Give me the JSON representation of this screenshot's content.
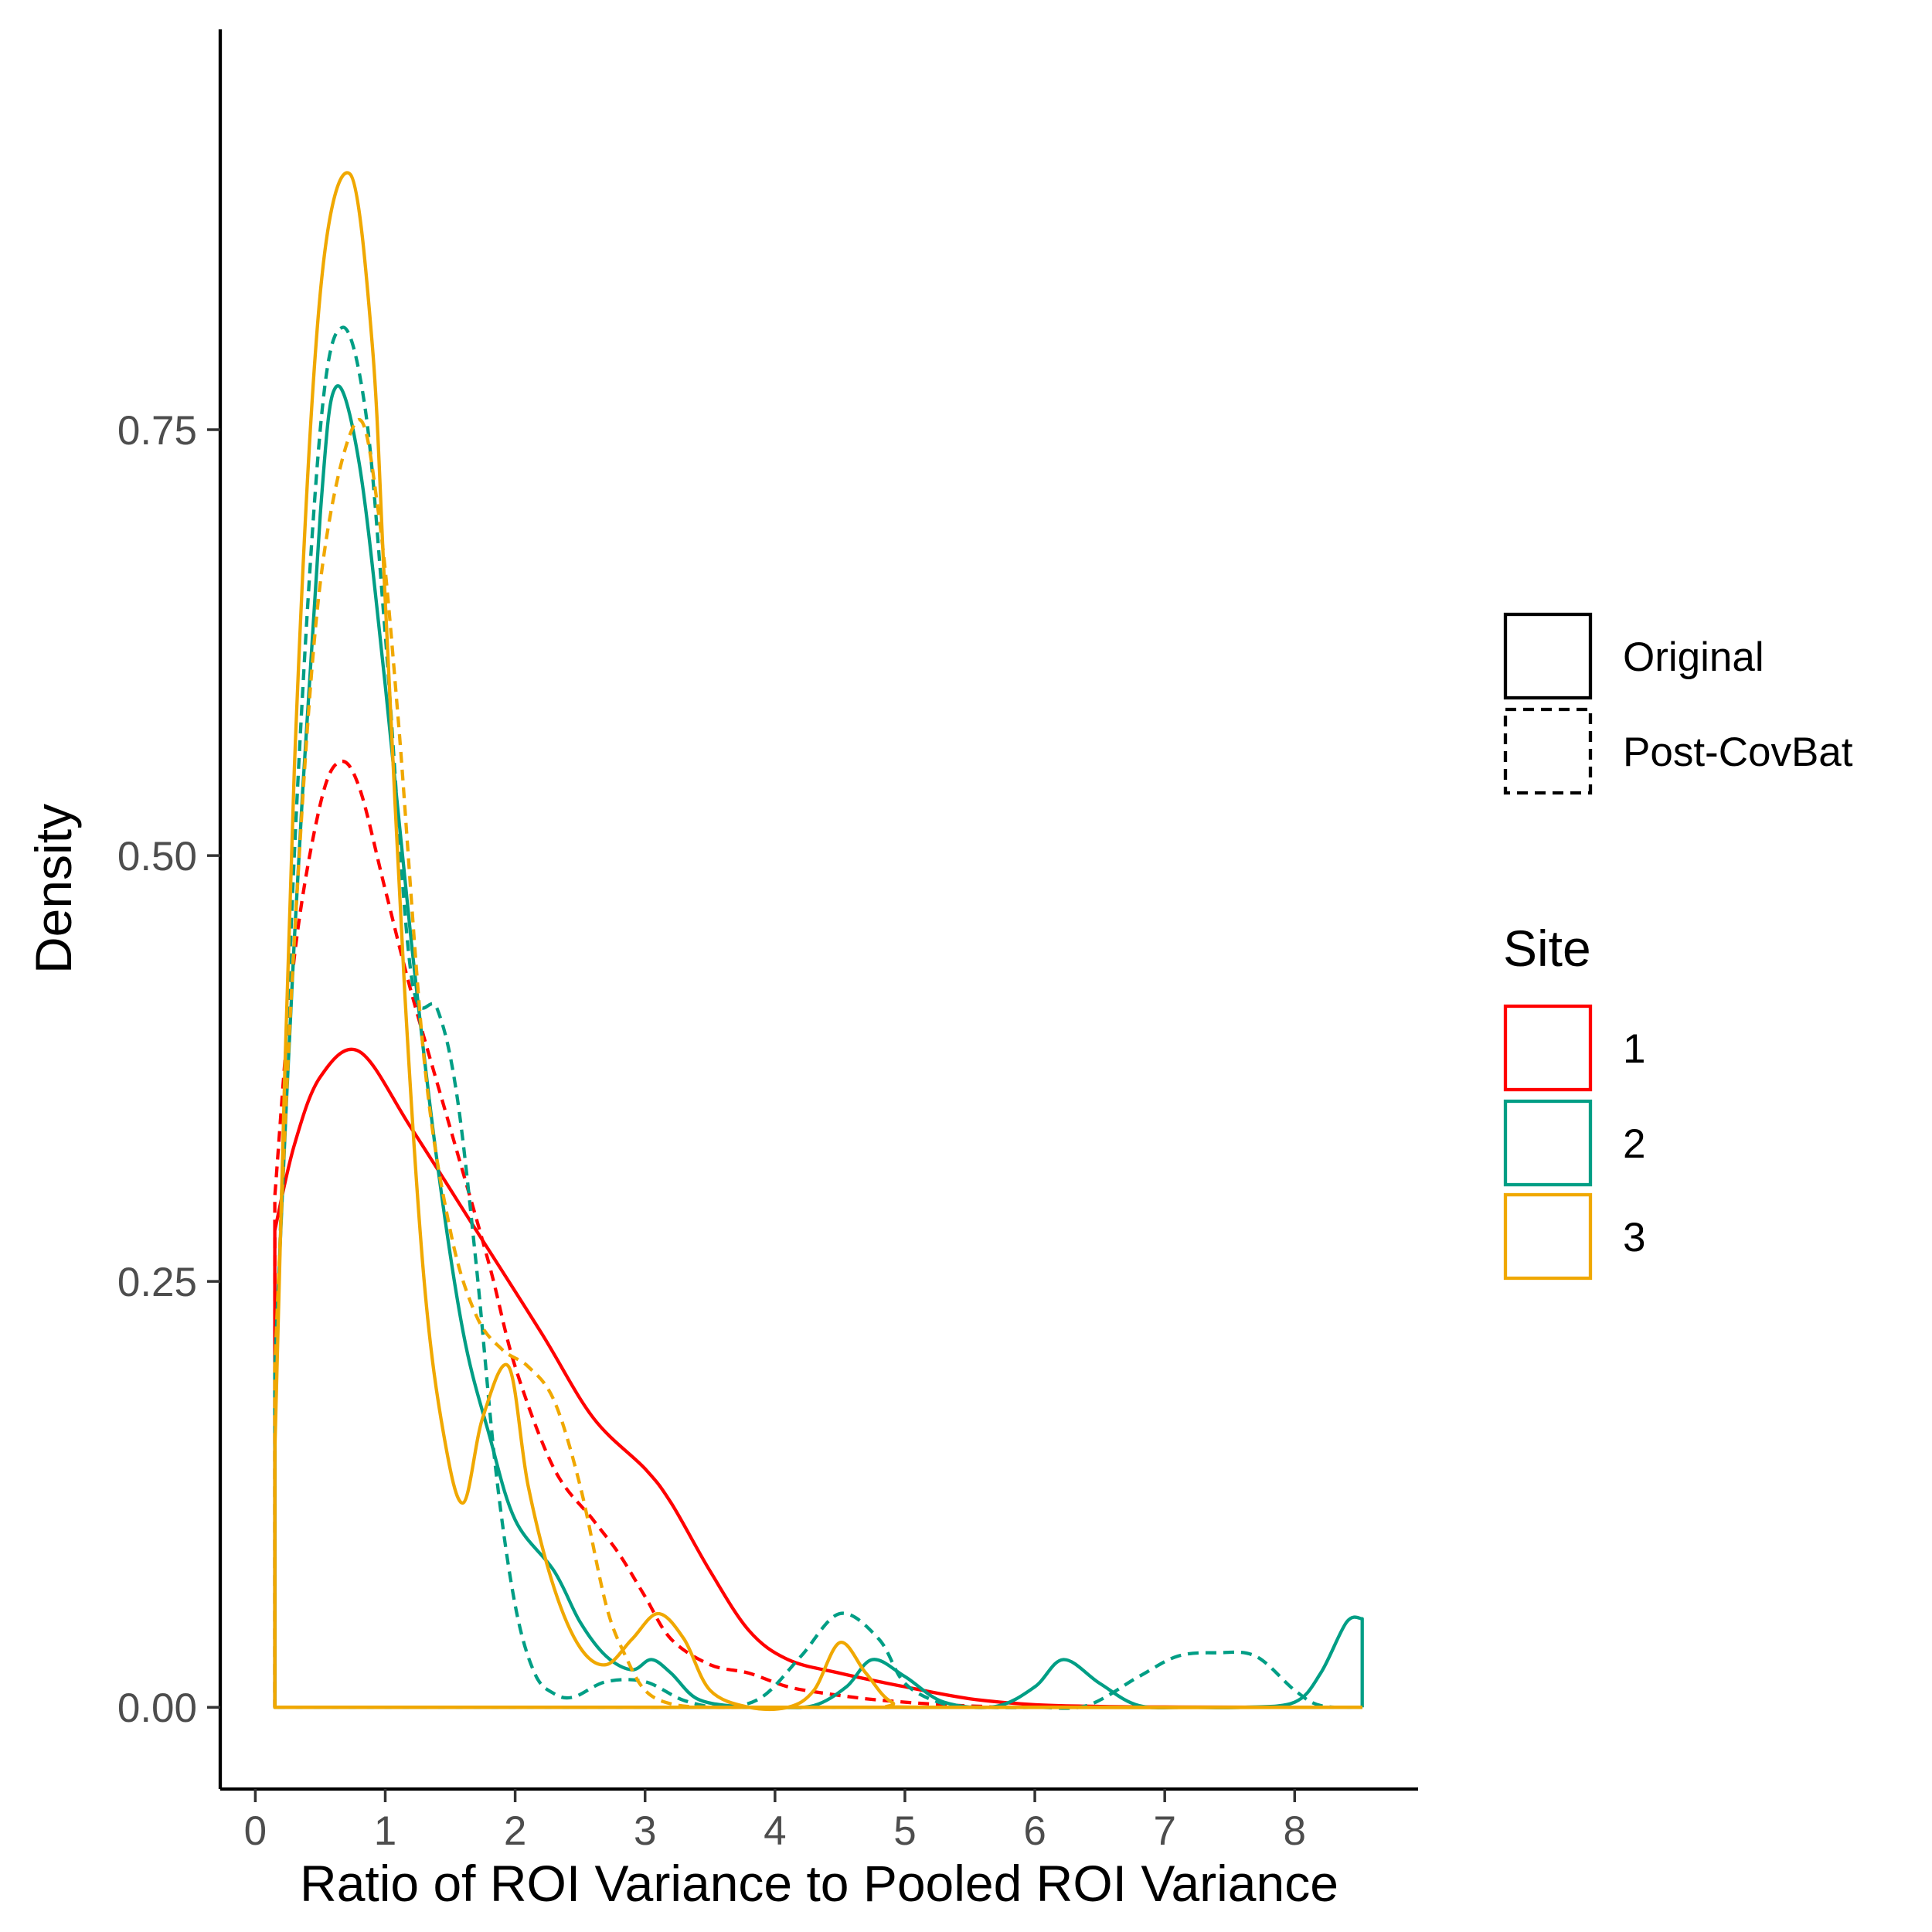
{
  "chart_data": {
    "type": "line",
    "subtype": "density",
    "title": "",
    "xlabel": "Ratio of ROI Variance to Pooled ROI Variance",
    "ylabel": "Density",
    "xlim": [
      -0.27,
      8.95
    ],
    "ylim": [
      -0.048,
      0.985
    ],
    "x_ticks": [
      0,
      1,
      2,
      3,
      4,
      5,
      6,
      7,
      8
    ],
    "y_ticks": [
      0.0,
      0.25,
      0.5,
      0.75
    ],
    "y_tick_labels": [
      "0.00",
      "0.25",
      "0.50",
      "0.75"
    ],
    "grid": false,
    "legend_position": "right",
    "linetype_legend": {
      "entries": [
        {
          "label": "Original",
          "dash": "solid"
        },
        {
          "label": "Post-CovBat",
          "dash": "dashed"
        }
      ]
    },
    "color_legend": {
      "title": "Site",
      "entries": [
        {
          "label": "1",
          "color": "#FF0000"
        },
        {
          "label": "2",
          "color": "#009E85"
        },
        {
          "label": "3",
          "color": "#F0A800"
        }
      ]
    },
    "series": [
      {
        "site": "1",
        "linetype": "Original",
        "color": "#FF0000",
        "dash": "solid",
        "x": [
          0.15,
          0.3,
          0.5,
          0.8,
          1.2,
          1.7,
          2.2,
          2.6,
          3.0,
          3.2,
          3.5,
          3.8,
          4.1,
          4.5,
          5.0,
          5.5,
          6.0,
          6.5,
          7.0,
          8.0,
          8.52
        ],
        "y": [
          0.28,
          0.33,
          0.37,
          0.385,
          0.34,
          0.28,
          0.22,
          0.17,
          0.14,
          0.12,
          0.08,
          0.045,
          0.028,
          0.02,
          0.012,
          0.005,
          0.0015,
          0.0005,
          0.0002,
          0.0,
          0.0
        ]
      },
      {
        "site": "1",
        "linetype": "Post-CovBat",
        "color": "#FF0000",
        "dash": "dashed",
        "x": [
          0.15,
          0.3,
          0.5,
          0.65,
          0.8,
          1.0,
          1.2,
          1.5,
          1.8,
          2.0,
          2.3,
          2.6,
          2.8,
          3.0,
          3.2,
          3.5,
          3.8,
          4.1,
          4.4,
          4.7,
          5.0,
          5.3,
          5.6,
          6.0,
          8.52
        ],
        "y": [
          0.3,
          0.44,
          0.53,
          0.555,
          0.54,
          0.48,
          0.42,
          0.34,
          0.26,
          0.2,
          0.14,
          0.11,
          0.09,
          0.065,
          0.04,
          0.025,
          0.02,
          0.012,
          0.008,
          0.005,
          0.003,
          0.0015,
          0.0005,
          0.0,
          0.0
        ]
      },
      {
        "site": "2",
        "linetype": "Original",
        "color": "#009E85",
        "dash": "solid",
        "x": [
          0.15,
          0.3,
          0.5,
          0.62,
          0.8,
          1.0,
          1.2,
          1.4,
          1.6,
          1.8,
          2.0,
          2.3,
          2.5,
          2.7,
          2.9,
          3.05,
          3.2,
          3.4,
          3.7,
          4.0,
          4.3,
          4.55,
          4.75,
          5.0,
          5.3,
          5.7,
          6.0,
          6.22,
          6.5,
          6.8,
          7.2,
          7.6,
          8.0,
          8.2,
          8.4,
          8.52
        ],
        "y": [
          0.2,
          0.45,
          0.7,
          0.775,
          0.73,
          0.6,
          0.45,
          0.32,
          0.22,
          0.16,
          0.11,
          0.08,
          0.05,
          0.03,
          0.022,
          0.028,
          0.02,
          0.005,
          0.0005,
          0.0,
          0.001,
          0.012,
          0.028,
          0.018,
          0.003,
          0.0005,
          0.012,
          0.028,
          0.014,
          0.001,
          0.0,
          0.0,
          0.003,
          0.02,
          0.05,
          0.052
        ]
      },
      {
        "site": "2",
        "linetype": "Post-CovBat",
        "color": "#009E85",
        "dash": "dashed",
        "x": [
          0.15,
          0.3,
          0.5,
          0.67,
          0.85,
          1.0,
          1.2,
          1.4,
          1.55,
          1.7,
          1.85,
          2.0,
          2.15,
          2.3,
          2.45,
          2.7,
          3.0,
          3.3,
          3.6,
          3.9,
          4.2,
          4.5,
          4.8,
          5.0,
          5.3,
          5.6,
          6.0,
          6.4,
          6.8,
          7.1,
          7.4,
          7.7,
          8.0,
          8.2,
          8.52
        ],
        "y": [
          0.18,
          0.5,
          0.75,
          0.81,
          0.76,
          0.63,
          0.43,
          0.41,
          0.36,
          0.26,
          0.14,
          0.06,
          0.02,
          0.008,
          0.006,
          0.015,
          0.015,
          0.004,
          0.0,
          0.006,
          0.03,
          0.055,
          0.04,
          0.014,
          0.002,
          0.0,
          0.0,
          0.001,
          0.018,
          0.03,
          0.032,
          0.03,
          0.01,
          0.001,
          0.0
        ]
      },
      {
        "site": "3",
        "linetype": "Original",
        "color": "#F0A800",
        "dash": "solid",
        "x": [
          0.15,
          0.3,
          0.5,
          0.73,
          0.9,
          1.0,
          1.15,
          1.3,
          1.45,
          1.6,
          1.75,
          1.95,
          2.1,
          2.3,
          2.5,
          2.7,
          2.9,
          3.1,
          3.3,
          3.5,
          3.8,
          4.1,
          4.3,
          4.5,
          4.7,
          4.9,
          5.2,
          8.52
        ],
        "y": [
          0.15,
          0.55,
          0.83,
          0.9,
          0.8,
          0.65,
          0.42,
          0.25,
          0.16,
          0.12,
          0.17,
          0.2,
          0.13,
          0.07,
          0.035,
          0.025,
          0.04,
          0.055,
          0.04,
          0.01,
          0.0,
          0.0,
          0.01,
          0.038,
          0.02,
          0.003,
          0.0,
          0.0
        ]
      },
      {
        "site": "3",
        "linetype": "Post-CovBat",
        "color": "#F0A800",
        "dash": "dashed",
        "x": [
          0.15,
          0.3,
          0.5,
          0.78,
          0.95,
          1.1,
          1.3,
          1.5,
          1.7,
          1.9,
          2.1,
          2.3,
          2.5,
          2.7,
          2.85,
          3.0,
          3.2,
          3.5,
          4.0,
          5.0,
          8.52
        ],
        "y": [
          0.2,
          0.45,
          0.66,
          0.755,
          0.7,
          0.58,
          0.38,
          0.28,
          0.23,
          0.21,
          0.2,
          0.18,
          0.13,
          0.06,
          0.03,
          0.01,
          0.002,
          0.0,
          0.0,
          0.0,
          0.0
        ]
      }
    ]
  }
}
